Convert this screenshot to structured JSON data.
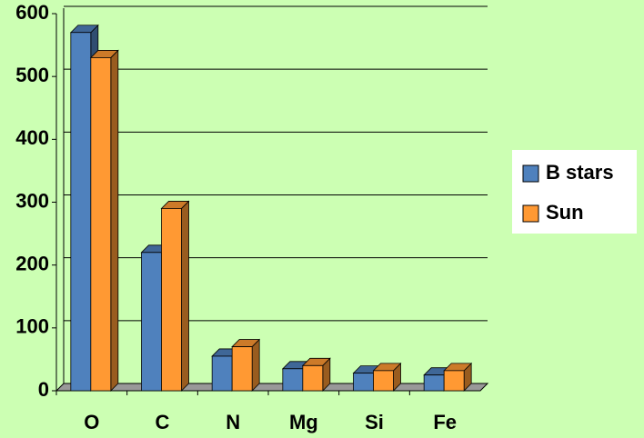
{
  "chart_data": {
    "type": "bar3d",
    "categories": [
      "O",
      "C",
      "N",
      "Mg",
      "Si",
      "Fe"
    ],
    "series": [
      {
        "name": "B stars",
        "color": "#4f81bd",
        "values": [
          570,
          220,
          55,
          35,
          28,
          25
        ]
      },
      {
        "name": "Sun",
        "color": "#ff9933",
        "values": [
          530,
          290,
          70,
          40,
          32,
          32
        ]
      }
    ],
    "ylim": [
      0,
      600
    ],
    "yticks": [
      0,
      100,
      200,
      300,
      400,
      500,
      600
    ],
    "grid": true,
    "legend": "right"
  }
}
